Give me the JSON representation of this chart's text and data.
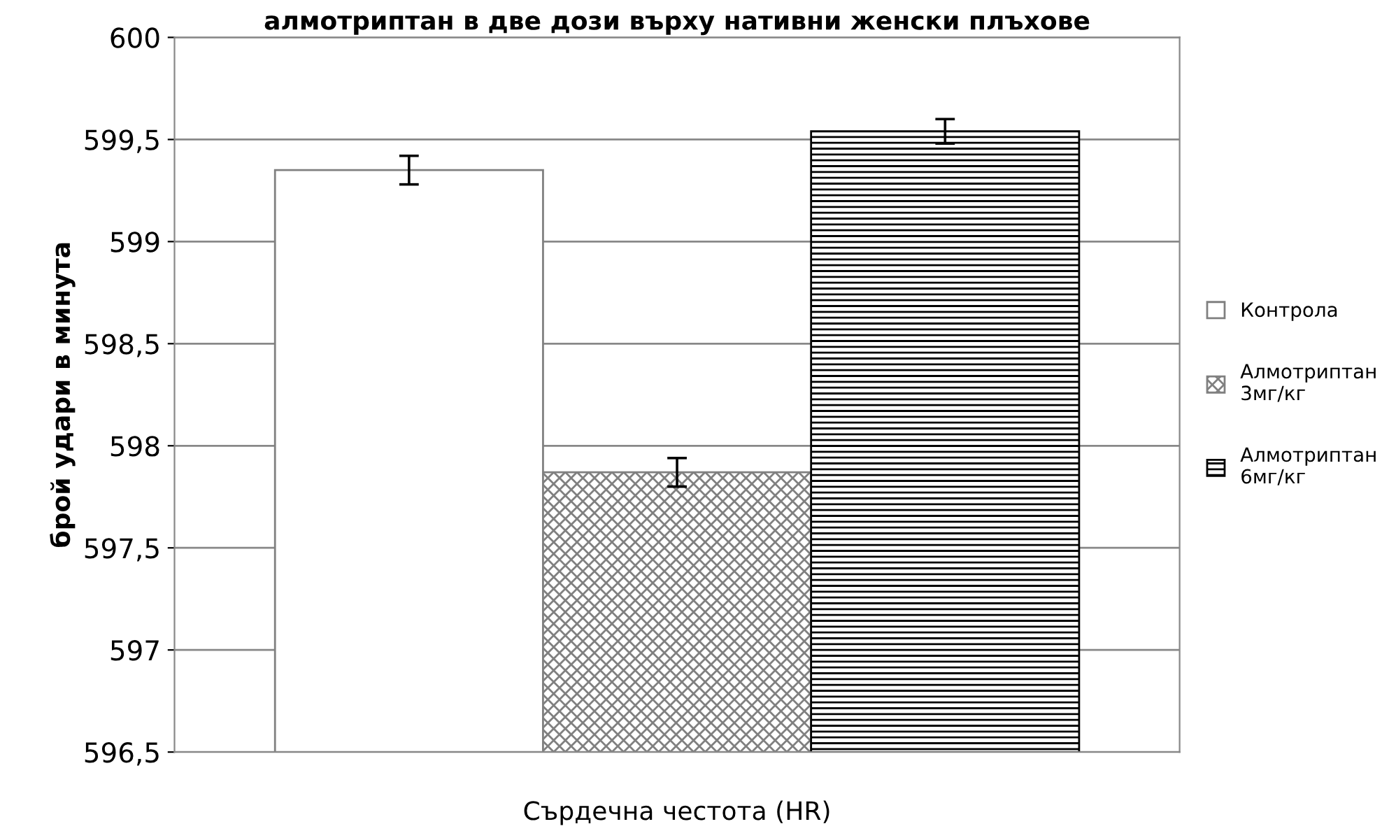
{
  "chart_data": {
    "type": "bar",
    "title": "алмотриптан в две дози върху нативни женски плъхове",
    "ylabel": "брой удари в минута",
    "categories": [
      "Сърдечна честота (HR)"
    ],
    "series": [
      {
        "name": "Контрола",
        "color": "#ffffff",
        "values": [
          599.35
        ],
        "errors": [
          0.07
        ]
      },
      {
        "name": "Алмотриптан 3мг/кг",
        "color": "#808080",
        "values": [
          597.87
        ],
        "errors": [
          0.07
        ]
      },
      {
        "name": "Алмотриптан 6мг/кг",
        "color": "#000000",
        "values": [
          599.54
        ],
        "errors": [
          0.06
        ]
      }
    ],
    "ylim": [
      596.5,
      600
    ],
    "yticks": [
      {
        "value": 596.5,
        "label": "596,5"
      },
      597,
      {
        "value": 597.5,
        "label": "597,5"
      },
      598,
      {
        "value": 598.5,
        "label": "598,5"
      },
      599,
      {
        "value": 599.5,
        "label": "599,5"
      },
      600
    ],
    "grid": "y",
    "legend": "right"
  }
}
